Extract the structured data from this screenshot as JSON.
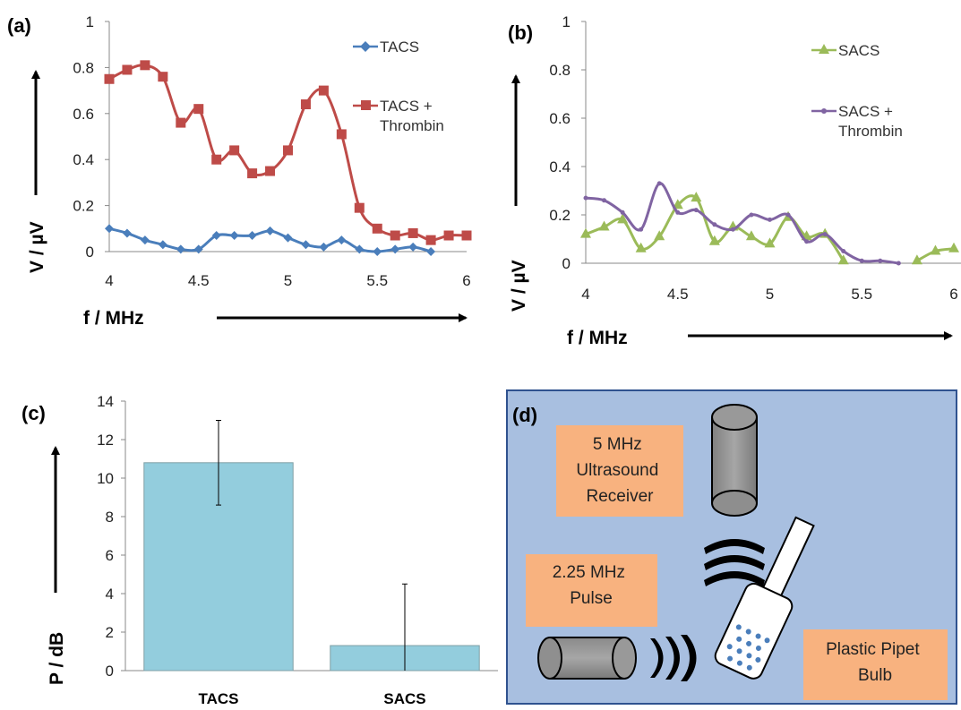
{
  "chart_data": [
    {
      "id": "a",
      "panel_label": "(a)",
      "type": "line",
      "xlabel": "f / MHz",
      "ylabel": "V / µV",
      "xlim": [
        4,
        6
      ],
      "ylim": [
        0,
        1
      ],
      "x_ticks": [
        "4",
        "4.5",
        "5",
        "5.5",
        "6"
      ],
      "y_ticks": [
        "0",
        "0.2",
        "0.4",
        "0.6",
        "0.8",
        "1"
      ],
      "legend": "right",
      "series": [
        {
          "name": "TACS",
          "color": "#4a7ebb",
          "marker": "diamond",
          "x": [
            4.0,
            4.1,
            4.2,
            4.3,
            4.4,
            4.5,
            4.6,
            4.7,
            4.8,
            4.9,
            5.0,
            5.1,
            5.2,
            5.3,
            5.4,
            5.5,
            5.6,
            5.7,
            5.8
          ],
          "y": [
            0.1,
            0.08,
            0.05,
            0.03,
            0.01,
            0.01,
            0.07,
            0.07,
            0.07,
            0.09,
            0.06,
            0.03,
            0.02,
            0.05,
            0.01,
            0.0,
            0.01,
            0.02,
            0.0
          ]
        },
        {
          "name": "TACS +\nThrombin",
          "color": "#be4b48",
          "marker": "square",
          "x": [
            4.0,
            4.1,
            4.2,
            4.3,
            4.4,
            4.5,
            4.6,
            4.7,
            4.8,
            4.9,
            5.0,
            5.1,
            5.2,
            5.3,
            5.4,
            5.5,
            5.6,
            5.7,
            5.8,
            5.9,
            6.0
          ],
          "y": [
            0.75,
            0.79,
            0.81,
            0.76,
            0.56,
            0.62,
            0.4,
            0.44,
            0.34,
            0.35,
            0.44,
            0.64,
            0.7,
            0.51,
            0.19,
            0.1,
            0.07,
            0.08,
            0.05,
            0.07,
            0.07
          ]
        }
      ]
    },
    {
      "id": "b",
      "panel_label": "(b)",
      "type": "line",
      "xlabel": "f / MHz",
      "ylabel": "V / µV",
      "xlim": [
        4,
        6
      ],
      "ylim": [
        0,
        1
      ],
      "x_ticks": [
        "4",
        "4.5",
        "5",
        "5.5",
        "6"
      ],
      "y_ticks": [
        "0",
        "0.2",
        "0.4",
        "0.6",
        "0.8",
        "1"
      ],
      "legend": "right",
      "series": [
        {
          "name": "SACS",
          "color": "#9bbb59",
          "marker": "triangle",
          "x": [
            4.0,
            4.1,
            4.2,
            4.3,
            4.4,
            4.5,
            4.6,
            4.7,
            4.8,
            4.9,
            5.0,
            5.1,
            5.2,
            5.3,
            5.4,
            5.8,
            5.9,
            6.0
          ],
          "y": [
            0.12,
            0.15,
            0.18,
            0.06,
            0.11,
            0.24,
            0.27,
            0.09,
            0.15,
            0.11,
            0.08,
            0.19,
            0.11,
            0.12,
            0.01,
            0.01,
            0.05,
            0.06
          ]
        },
        {
          "name": "SACS +\nThrombin",
          "color": "#8064a2",
          "marker": "dot",
          "x": [
            4.0,
            4.1,
            4.2,
            4.3,
            4.4,
            4.5,
            4.6,
            4.7,
            4.8,
            4.9,
            5.0,
            5.1,
            5.2,
            5.3,
            5.4,
            5.5,
            5.6,
            5.7
          ],
          "y": [
            0.27,
            0.26,
            0.21,
            0.14,
            0.33,
            0.21,
            0.22,
            0.16,
            0.14,
            0.2,
            0.18,
            0.2,
            0.09,
            0.12,
            0.05,
            0.01,
            0.01,
            0.0
          ]
        }
      ]
    },
    {
      "id": "c",
      "panel_label": "(c)",
      "type": "bar",
      "categories": [
        "TACS",
        "SACS"
      ],
      "values": [
        10.8,
        1.3
      ],
      "error": [
        2.2,
        3.2
      ],
      "ylabel": "P / dB",
      "ylim": [
        0,
        14
      ],
      "y_ticks": [
        "0",
        "2",
        "4",
        "6",
        "8",
        "10",
        "12",
        "14"
      ],
      "bar_color": "#93cddd"
    }
  ],
  "diagram": {
    "panel_label": "(d)",
    "receiver_label": [
      "5 MHz",
      "Ultrasound",
      "Receiver"
    ],
    "pulse_label": [
      "2.25 MHz",
      "Pulse"
    ],
    "pipet_label": [
      "Plastic Pipet",
      "Bulb"
    ],
    "background_color": "#a8bfe0",
    "label_color": "#f8b27f"
  }
}
